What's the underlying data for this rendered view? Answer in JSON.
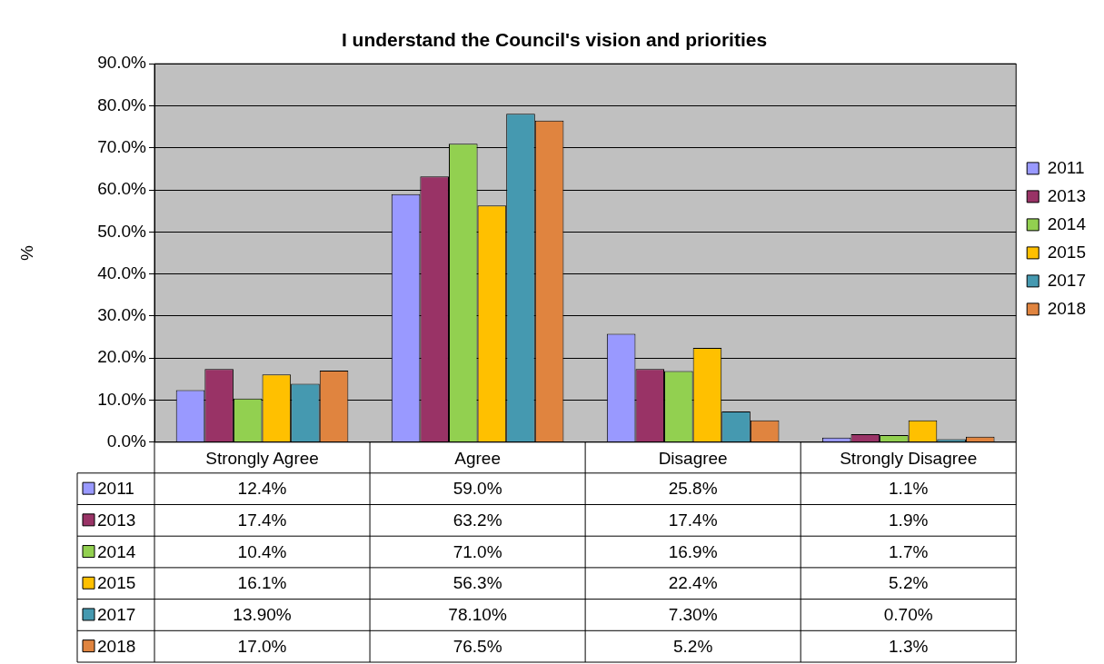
{
  "chart_data": {
    "type": "bar",
    "title": "I understand the Council's vision and priorities",
    "ylabel": "%",
    "categories": [
      "Strongly Agree",
      "Agree",
      "Disagree",
      "Strongly Disagree"
    ],
    "series": [
      {
        "name": "2011",
        "color": "#9999ff",
        "values": [
          12.4,
          59.0,
          25.8,
          1.1
        ],
        "value_labels": [
          "12.4%",
          "59.0%",
          "25.8%",
          "1.1%"
        ]
      },
      {
        "name": "2013",
        "color": "#993366",
        "values": [
          17.4,
          63.2,
          17.4,
          1.9
        ],
        "value_labels": [
          "17.4%",
          "63.2%",
          "17.4%",
          "1.9%"
        ]
      },
      {
        "name": "2014",
        "color": "#92d050",
        "values": [
          10.4,
          71.0,
          16.9,
          1.7
        ],
        "value_labels": [
          "10.4%",
          "71.0%",
          "16.9%",
          "1.7%"
        ]
      },
      {
        "name": "2015",
        "color": "#ffc000",
        "values": [
          16.1,
          56.3,
          22.4,
          5.2
        ],
        "value_labels": [
          "16.1%",
          "56.3%",
          "22.4%",
          "5.2%"
        ]
      },
      {
        "name": "2017",
        "color": "#4599b0",
        "values": [
          13.9,
          78.1,
          7.3,
          0.7
        ],
        "value_labels": [
          "13.90%",
          "78.10%",
          "7.30%",
          "0.70%"
        ]
      },
      {
        "name": "2018",
        "color": "#e0843f",
        "values": [
          17.0,
          76.5,
          5.2,
          1.3
        ],
        "value_labels": [
          "17.0%",
          "76.5%",
          "5.2%",
          "1.3%"
        ]
      }
    ],
    "ylim": [
      0,
      90
    ],
    "yticks": [
      {
        "value": 0,
        "label": "0.0%"
      },
      {
        "value": 10,
        "label": "10.0%"
      },
      {
        "value": 20,
        "label": "20.0%"
      },
      {
        "value": 30,
        "label": "30.0%"
      },
      {
        "value": 40,
        "label": "40.0%"
      },
      {
        "value": 50,
        "label": "50.0%"
      },
      {
        "value": 60,
        "label": "60.0%"
      },
      {
        "value": 70,
        "label": "70.0%"
      },
      {
        "value": 80,
        "label": "80.0%"
      },
      {
        "value": 90,
        "label": "90.0%"
      }
    ],
    "grid": "y",
    "legend": "right"
  }
}
